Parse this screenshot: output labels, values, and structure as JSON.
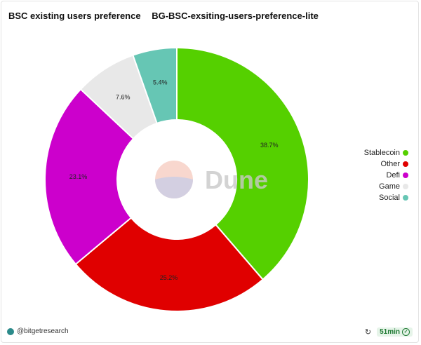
{
  "header": {
    "title": "BSC existing users preference",
    "query_name": "BG-BSC-exsiting-users-preference-lite"
  },
  "chart_data": {
    "type": "pie",
    "donut": true,
    "categories": [
      "Stablecoin",
      "Other",
      "Defi",
      "Game",
      "Social"
    ],
    "values": [
      38.7,
      25.2,
      23.1,
      7.6,
      5.4
    ],
    "labels": [
      "38.7%",
      "25.2%",
      "23.1%",
      "7.6%",
      "5.4%"
    ],
    "colors": [
      "#55d000",
      "#e00000",
      "#cc00cc",
      "#e8e8e8",
      "#66c6b4"
    ],
    "legend_position": "right"
  },
  "watermark": {
    "text": "Dune"
  },
  "footer": {
    "handle": "@bitgetresearch",
    "refresh_time": "51min"
  }
}
